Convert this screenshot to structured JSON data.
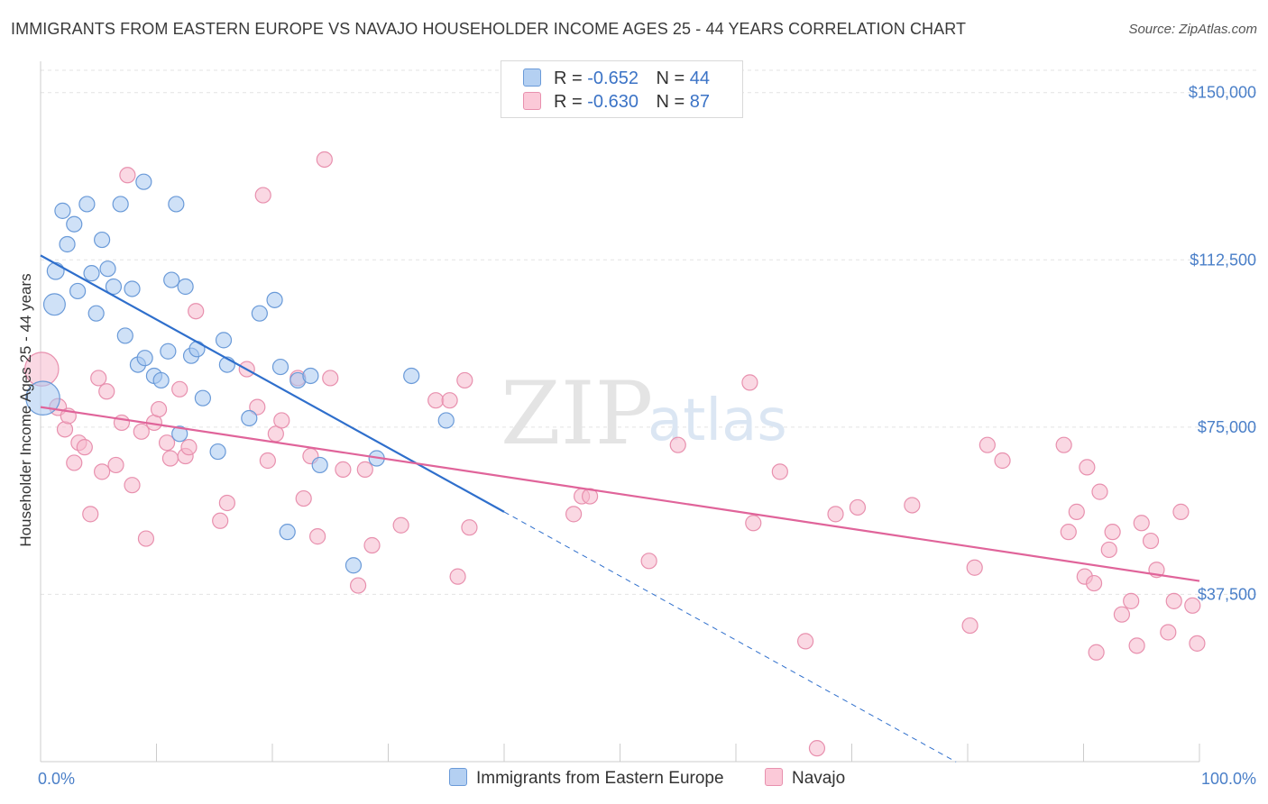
{
  "header": {
    "title": "IMMIGRANTS FROM EASTERN EUROPE VS NAVAJO HOUSEHOLDER INCOME AGES 25 - 44 YEARS CORRELATION CHART",
    "source": "Source: ZipAtlas.com"
  },
  "watermark": {
    "zip": "ZIP",
    "atlas": "atlas"
  },
  "legend": {
    "series": [
      {
        "r_label": "R =",
        "r_value": "-0.652",
        "n_label": "N =",
        "n_value": "44"
      },
      {
        "r_label": "R =",
        "r_value": "-0.630",
        "n_label": "N =",
        "n_value": "87"
      }
    ]
  },
  "colors": {
    "blue_fill": "#a8c8f0",
    "blue_stroke": "#6a9ad8",
    "blue_line": "#2f6fcc",
    "pink_fill": "#f6b8cc",
    "pink_stroke": "#e890ae",
    "pink_line": "#e0649a",
    "tick_text": "#4a7fc8",
    "grid": "#e3e3e3"
  },
  "chart_data": {
    "type": "scatter",
    "ylabel": "Householder Income Ages 25 - 44 years",
    "x_tick_labels": [
      "0.0%",
      "100.0%"
    ],
    "y_tick_labels": [
      "$37,500",
      "$75,000",
      "$112,500",
      "$150,000"
    ],
    "y_ticks": [
      37500,
      75000,
      112500,
      150000
    ],
    "xlim": [
      0,
      100
    ],
    "ylim": [
      0,
      155000
    ],
    "grid": true,
    "series": [
      {
        "name": "Immigrants from Eastern Europe",
        "color": "blue",
        "trend": {
          "x0": 0,
          "y0": 113500,
          "x1": 40,
          "y1": 56000,
          "dashed_to_x": 79
        },
        "points": [
          [
            0.2,
            81500,
            22
          ],
          [
            1.2,
            102500,
            14
          ],
          [
            1.3,
            110000,
            11
          ],
          [
            1.9,
            123500,
            10
          ],
          [
            2.3,
            116000,
            10
          ],
          [
            2.9,
            120500,
            10
          ],
          [
            3.2,
            105500,
            10
          ],
          [
            4.0,
            125000,
            10
          ],
          [
            4.4,
            109500,
            10
          ],
          [
            4.8,
            100500,
            10
          ],
          [
            5.3,
            117000,
            10
          ],
          [
            5.8,
            110500,
            10
          ],
          [
            6.3,
            106500,
            10
          ],
          [
            6.9,
            125000,
            10
          ],
          [
            7.3,
            95500,
            10
          ],
          [
            7.9,
            106000,
            10
          ],
          [
            8.4,
            89000,
            10
          ],
          [
            8.9,
            130000,
            10
          ],
          [
            9.0,
            90500,
            10
          ],
          [
            9.8,
            86500,
            10
          ],
          [
            10.4,
            85500,
            10
          ],
          [
            11.0,
            92000,
            10
          ],
          [
            11.3,
            108000,
            10
          ],
          [
            11.7,
            125000,
            10
          ],
          [
            12.0,
            73500,
            10
          ],
          [
            12.5,
            106500,
            10
          ],
          [
            13.0,
            91000,
            10
          ],
          [
            13.5,
            92500,
            10
          ],
          [
            14.0,
            81500,
            10
          ],
          [
            15.3,
            69500,
            10
          ],
          [
            15.8,
            94500,
            10
          ],
          [
            16.1,
            89000,
            10
          ],
          [
            18.0,
            77000,
            10
          ],
          [
            18.9,
            100500,
            10
          ],
          [
            20.2,
            103500,
            10
          ],
          [
            20.7,
            88500,
            10
          ],
          [
            21.3,
            51500,
            10
          ],
          [
            22.2,
            85500,
            10
          ],
          [
            23.3,
            86500,
            10
          ],
          [
            24.1,
            66500,
            10
          ],
          [
            27.0,
            44000,
            10
          ],
          [
            29.0,
            68000,
            10
          ],
          [
            32.0,
            86500,
            10
          ],
          [
            35.0,
            76500,
            10
          ]
        ]
      },
      {
        "name": "Navajo",
        "color": "pink",
        "trend": {
          "x0": 0,
          "y0": 79500,
          "x1": 100,
          "y1": 40500
        },
        "points": [
          [
            0.1,
            88000,
            22
          ],
          [
            1.5,
            79500,
            11
          ],
          [
            2.1,
            74500,
            10
          ],
          [
            2.4,
            77500,
            10
          ],
          [
            2.9,
            67000,
            10
          ],
          [
            3.3,
            71500,
            10
          ],
          [
            3.8,
            70500,
            10
          ],
          [
            4.3,
            55500,
            10
          ],
          [
            5.0,
            86000,
            10
          ],
          [
            5.3,
            65000,
            10
          ],
          [
            5.7,
            83000,
            10
          ],
          [
            6.5,
            66500,
            10
          ],
          [
            7.0,
            76000,
            10
          ],
          [
            7.5,
            131500,
            10
          ],
          [
            7.9,
            62000,
            10
          ],
          [
            8.7,
            74000,
            10
          ],
          [
            9.1,
            50000,
            10
          ],
          [
            9.8,
            76000,
            10
          ],
          [
            10.2,
            79000,
            10
          ],
          [
            10.9,
            71500,
            10
          ],
          [
            11.2,
            68000,
            10
          ],
          [
            12.0,
            83500,
            10
          ],
          [
            12.5,
            68500,
            10
          ],
          [
            12.8,
            70500,
            10
          ],
          [
            13.4,
            101000,
            10
          ],
          [
            15.5,
            54000,
            10
          ],
          [
            16.1,
            58000,
            10
          ],
          [
            17.8,
            88000,
            10
          ],
          [
            18.7,
            79500,
            10
          ],
          [
            19.2,
            127000,
            10
          ],
          [
            19.6,
            67500,
            10
          ],
          [
            20.3,
            73500,
            10
          ],
          [
            20.8,
            76500,
            10
          ],
          [
            22.2,
            86000,
            10
          ],
          [
            22.7,
            59000,
            10
          ],
          [
            23.3,
            68500,
            10
          ],
          [
            23.9,
            50500,
            10
          ],
          [
            24.5,
            135000,
            10
          ],
          [
            25.0,
            86000,
            10
          ],
          [
            26.1,
            65500,
            10
          ],
          [
            27.4,
            39500,
            10
          ],
          [
            28.0,
            65500,
            10
          ],
          [
            28.6,
            48500,
            10
          ],
          [
            31.1,
            53000,
            10
          ],
          [
            34.1,
            81000,
            10
          ],
          [
            35.3,
            81000,
            10
          ],
          [
            36.0,
            41500,
            10
          ],
          [
            36.6,
            85500,
            10
          ],
          [
            37.0,
            52500,
            10
          ],
          [
            46.0,
            55500,
            10
          ],
          [
            46.7,
            59500,
            10
          ],
          [
            47.4,
            59500,
            10
          ],
          [
            52.5,
            45000,
            10
          ],
          [
            55.0,
            71000,
            10
          ],
          [
            61.2,
            85000,
            10
          ],
          [
            61.5,
            53500,
            10
          ],
          [
            63.8,
            65000,
            10
          ],
          [
            66.0,
            27000,
            10
          ],
          [
            67.0,
            3000,
            10
          ],
          [
            68.6,
            55500,
            10
          ],
          [
            70.5,
            57000,
            10
          ],
          [
            75.2,
            57500,
            10
          ],
          [
            80.2,
            30500,
            10
          ],
          [
            80.6,
            43500,
            10
          ],
          [
            81.7,
            71000,
            10
          ],
          [
            83.0,
            67500,
            10
          ],
          [
            88.3,
            71000,
            10
          ],
          [
            88.7,
            51500,
            10
          ],
          [
            89.4,
            56000,
            10
          ],
          [
            90.1,
            41500,
            10
          ],
          [
            90.3,
            66000,
            10
          ],
          [
            90.9,
            40000,
            10
          ],
          [
            91.1,
            24500,
            10
          ],
          [
            91.4,
            60500,
            10
          ],
          [
            92.2,
            47500,
            10
          ],
          [
            92.5,
            51500,
            10
          ],
          [
            93.3,
            33000,
            10
          ],
          [
            94.1,
            36000,
            10
          ],
          [
            94.6,
            26000,
            10
          ],
          [
            95.0,
            53500,
            10
          ],
          [
            95.8,
            49500,
            10
          ],
          [
            96.3,
            43000,
            10
          ],
          [
            97.3,
            29000,
            10
          ],
          [
            97.8,
            36000,
            10
          ],
          [
            98.4,
            56000,
            10
          ],
          [
            99.4,
            35000,
            10
          ],
          [
            99.8,
            26500,
            10
          ]
        ]
      }
    ]
  },
  "bottom_legend": {
    "items": [
      {
        "label": "Immigrants from Eastern Europe"
      },
      {
        "label": "Navajo"
      }
    ]
  }
}
